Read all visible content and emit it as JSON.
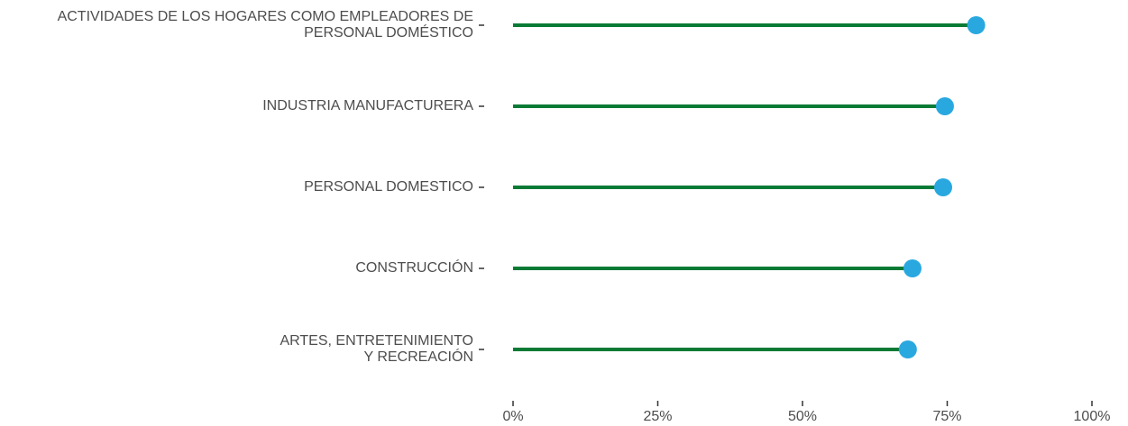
{
  "chart_data": {
    "type": "lollipop",
    "categories": [
      "ACTIVIDADES DE LOS HOGARES COMO EMPLEADORES DE\nPERSONAL DOMÉSTICO",
      "INDUSTRIA MANUFACTURERA",
      "PERSONAL DOMESTICO",
      "CONSTRUCCIÓN",
      "ARTES, ENTRETENIMIENTO\nY RECREACIÓN"
    ],
    "values": [
      80,
      74.6,
      74.3,
      69,
      68.2
    ],
    "line_color": "#0b7a35",
    "point_color": "#29a8e0",
    "xlim": [
      0,
      100
    ],
    "xticks": [
      {
        "value": 0,
        "label": "0%"
      },
      {
        "value": 25,
        "label": "25%"
      },
      {
        "value": 50,
        "label": "50%"
      },
      {
        "value": 75,
        "label": "75%"
      },
      {
        "value": 100,
        "label": "100%"
      }
    ]
  }
}
